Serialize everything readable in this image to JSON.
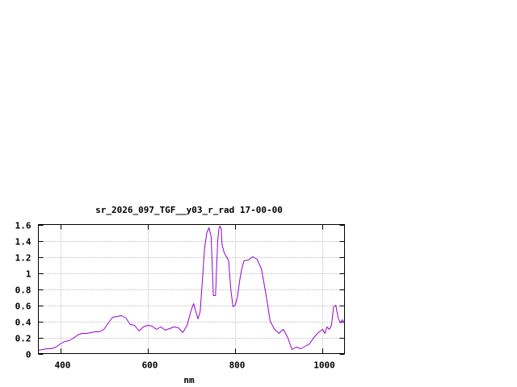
{
  "chart_data": {
    "type": "line",
    "title": "sr_2026_097_TGF__y03_r_rad 17-00-00",
    "xlabel": "nm",
    "ylabel": "",
    "xlim": [
      350,
      1050
    ],
    "ylim": [
      0,
      1.6
    ],
    "x_ticks": [
      400,
      600,
      800,
      1000
    ],
    "x_tick_labels": [
      "400",
      "600",
      "800",
      "1000"
    ],
    "y_ticks": [
      0,
      0.2,
      0.4,
      0.6,
      0.8,
      1,
      1.2,
      1.4,
      1.6
    ],
    "y_tick_labels": [
      "0",
      "0.2",
      "0.4",
      "0.6",
      "0.8",
      "1",
      "1.2",
      "1.4",
      "1.6"
    ],
    "grid": true,
    "legend": "none",
    "series": [
      {
        "color": "#9400d3",
        "x": [
          350,
          360,
          370,
          380,
          390,
          400,
          410,
          420,
          430,
          440,
          450,
          460,
          470,
          480,
          490,
          500,
          510,
          520,
          530,
          540,
          550,
          555,
          560,
          570,
          580,
          590,
          600,
          610,
          620,
          630,
          640,
          650,
          660,
          670,
          680,
          690,
          700,
          705,
          710,
          715,
          720,
          725,
          730,
          735,
          740,
          745,
          750,
          755,
          760,
          763,
          765,
          768,
          770,
          775,
          780,
          785,
          790,
          795,
          800,
          805,
          810,
          815,
          820,
          830,
          840,
          850,
          860,
          870,
          880,
          890,
          900,
          910,
          920,
          930,
          940,
          950,
          960,
          970,
          980,
          990,
          1000,
          1005,
          1010,
          1015,
          1020,
          1025,
          1030,
          1035,
          1040,
          1045,
          1050
        ],
        "y": [
          0.04,
          0.05,
          0.06,
          0.06,
          0.08,
          0.12,
          0.15,
          0.16,
          0.19,
          0.23,
          0.25,
          0.25,
          0.26,
          0.27,
          0.27,
          0.3,
          0.38,
          0.45,
          0.46,
          0.47,
          0.44,
          0.4,
          0.36,
          0.35,
          0.28,
          0.33,
          0.35,
          0.34,
          0.3,
          0.33,
          0.29,
          0.31,
          0.33,
          0.32,
          0.26,
          0.35,
          0.55,
          0.62,
          0.52,
          0.43,
          0.52,
          0.9,
          1.3,
          1.5,
          1.56,
          1.45,
          0.72,
          0.72,
          1.4,
          1.55,
          1.58,
          1.55,
          1.35,
          1.25,
          1.2,
          1.15,
          0.8,
          0.58,
          0.6,
          0.7,
          0.9,
          1.05,
          1.15,
          1.16,
          1.2,
          1.17,
          1.05,
          0.75,
          0.4,
          0.3,
          0.25,
          0.3,
          0.2,
          0.05,
          0.08,
          0.06,
          0.09,
          0.12,
          0.2,
          0.26,
          0.3,
          0.25,
          0.33,
          0.3,
          0.35,
          0.58,
          0.6,
          0.45,
          0.38,
          0.42,
          0.38
        ]
      }
    ]
  }
}
